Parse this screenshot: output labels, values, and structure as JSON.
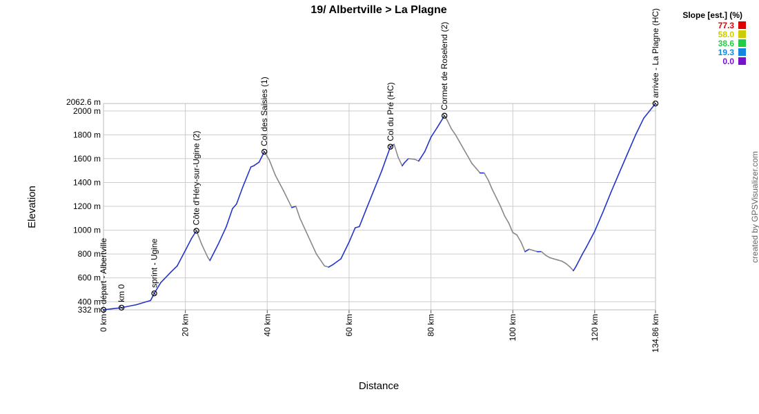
{
  "chart_data": {
    "type": "line",
    "title": "19/ Albertville > La Plagne",
    "xlabel": "Distance",
    "ylabel": "Elevation",
    "xlim": [
      0,
      134.86
    ],
    "ylim": [
      332,
      2062.6
    ],
    "x_ticks": [
      {
        "value": 0,
        "label": "0 km"
      },
      {
        "value": 20,
        "label": "20 km"
      },
      {
        "value": 40,
        "label": "40 km"
      },
      {
        "value": 60,
        "label": "60 km"
      },
      {
        "value": 80,
        "label": "80 km"
      },
      {
        "value": 100,
        "label": "100 km"
      },
      {
        "value": 120,
        "label": "120 km"
      },
      {
        "value": 134.86,
        "label": "134.86 km"
      }
    ],
    "y_ticks": [
      {
        "value": 332,
        "label": "332 m"
      },
      {
        "value": 400,
        "label": "400 m"
      },
      {
        "value": 600,
        "label": "600 m"
      },
      {
        "value": 800,
        "label": "800 m"
      },
      {
        "value": 1000,
        "label": "1000 m"
      },
      {
        "value": 1200,
        "label": "1200 m"
      },
      {
        "value": 1400,
        "label": "1400 m"
      },
      {
        "value": 1600,
        "label": "1600 m"
      },
      {
        "value": 1800,
        "label": "1800 m"
      },
      {
        "value": 2000,
        "label": "2000 m"
      },
      {
        "value": 2062.6,
        "label": "2062.6 m"
      }
    ],
    "grid": true,
    "series": [
      {
        "x": [
          0,
          2,
          4.4,
          8,
          11.5,
          12.4,
          14,
          16.5,
          18,
          20,
          21.5,
          22.7,
          24,
          25.5,
          26,
          28,
          30,
          31.5,
          32.5,
          34,
          36,
          36.7,
          38,
          39.3,
          40.5,
          42,
          44,
          46,
          47,
          48,
          50,
          52,
          54,
          55,
          56,
          58,
          60,
          61.5,
          62.5,
          64,
          66,
          68,
          70.1,
          71,
          72,
          73,
          73.5,
          74.5,
          76,
          77,
          78.5,
          80,
          81.5,
          83.3,
          84,
          85,
          86,
          87,
          88,
          89,
          90,
          91,
          92,
          93,
          94,
          95,
          96,
          97,
          98,
          99,
          100,
          101,
          102,
          103,
          104,
          105,
          106,
          107,
          108,
          109,
          110,
          111,
          112,
          113,
          114,
          114.8,
          115.5,
          117,
          118,
          120,
          122,
          124,
          126,
          128,
          130,
          132,
          134.86
        ],
        "y": [
          332,
          340,
          350,
          375,
          410,
          470,
          560,
          650,
          700,
          830,
          930,
          995,
          880,
          770,
          745,
          880,
          1030,
          1180,
          1220,
          1360,
          1530,
          1540,
          1570,
          1658,
          1590,
          1460,
          1330,
          1190,
          1200,
          1100,
          950,
          800,
          700,
          690,
          710,
          760,
          900,
          1020,
          1030,
          1160,
          1330,
          1500,
          1700,
          1720,
          1610,
          1540,
          1565,
          1600,
          1595,
          1580,
          1660,
          1780,
          1860,
          1960,
          1920,
          1850,
          1800,
          1740,
          1680,
          1620,
          1560,
          1520,
          1480,
          1480,
          1420,
          1340,
          1270,
          1200,
          1120,
          1060,
          980,
          960,
          900,
          820,
          840,
          830,
          820,
          820,
          790,
          770,
          760,
          750,
          740,
          720,
          690,
          660,
          700,
          800,
          860,
          990,
          1150,
          1320,
          1480,
          1640,
          1800,
          1940,
          2062.6
        ]
      }
    ],
    "markers": [
      {
        "x": 0,
        "y": 332,
        "label": "départ - Albertville"
      },
      {
        "x": 4.4,
        "y": 350,
        "label": "km 0"
      },
      {
        "x": 12.4,
        "y": 470,
        "label": "sprint - Ugine"
      },
      {
        "x": 22.7,
        "y": 995,
        "label": "Côte d'Héry-sur-Ugine (2)"
      },
      {
        "x": 39.3,
        "y": 1658,
        "label": "Col des Saisies (1)"
      },
      {
        "x": 70.1,
        "y": 1700,
        "label": "Col du Pré (HC)"
      },
      {
        "x": 83.3,
        "y": 1960,
        "label": "Cormet de Roselend (2)"
      },
      {
        "x": 134.86,
        "y": 2062.6,
        "label": "arrivée - La Plagne (HC)"
      }
    ],
    "legend": {
      "title": "Slope [est.] (%)",
      "position": "top-right",
      "items": [
        {
          "value": "77.3",
          "color": "#dd0000"
        },
        {
          "value": "58.0",
          "color": "#cccc00"
        },
        {
          "value": "38.6",
          "color": "#22cc44"
        },
        {
          "value": "19.3",
          "color": "#1188dd"
        },
        {
          "value": "0.0",
          "color": "#7711cc"
        }
      ]
    },
    "colors": {
      "climb": "#2233cc",
      "descent": "#888888",
      "grid": "#cccccc"
    }
  },
  "credit": "created by GPSVisualizer.com"
}
